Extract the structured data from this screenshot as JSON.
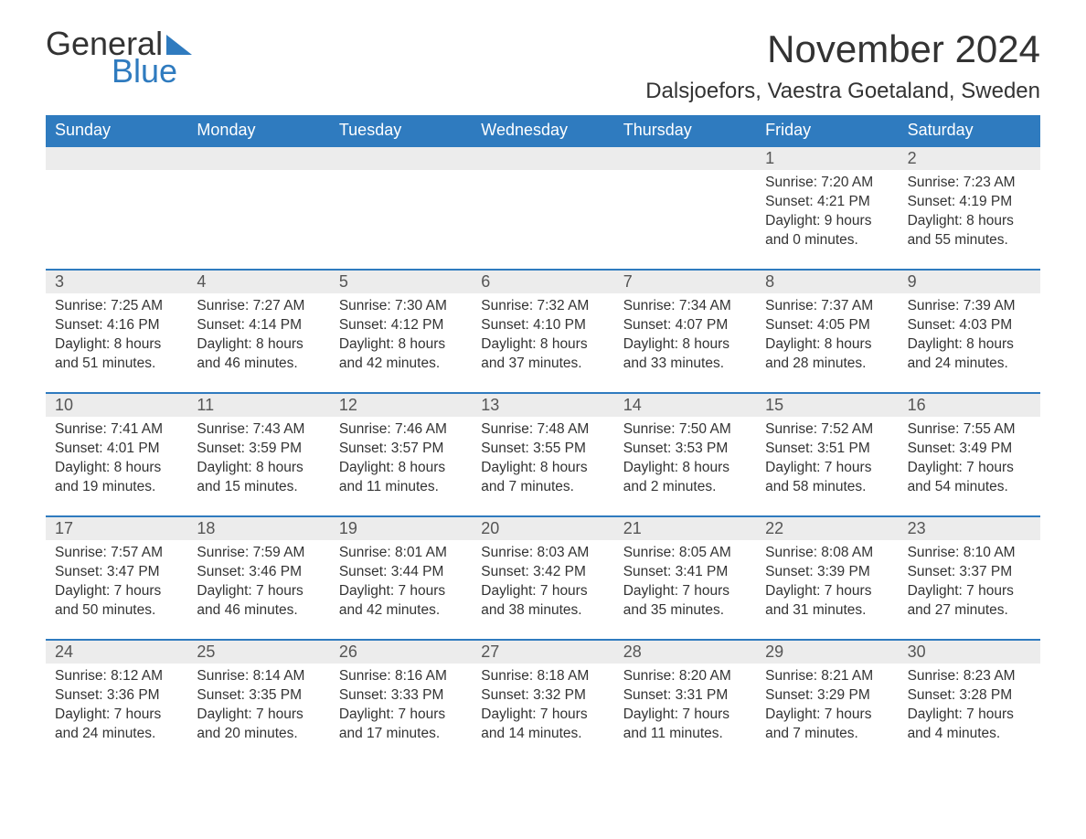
{
  "logo": {
    "word1": "General",
    "word2": "Blue",
    "word1_color": "#333333",
    "word2_color": "#2f7bbf",
    "triangle_color": "#2f7bbf"
  },
  "title": {
    "month": "November 2024",
    "location": "Dalsjoefors, Vaestra Goetaland, Sweden",
    "month_fontsize": 42,
    "location_fontsize": 24,
    "color": "#333333"
  },
  "calendar": {
    "header_bg": "#2f7bbf",
    "header_fg": "#ffffff",
    "daynum_bg": "#ececec",
    "border_color": "#2f7bbf",
    "text_color": "#333333",
    "columns": [
      "Sunday",
      "Monday",
      "Tuesday",
      "Wednesday",
      "Thursday",
      "Friday",
      "Saturday"
    ],
    "weeks": [
      [
        null,
        null,
        null,
        null,
        null,
        {
          "n": "1",
          "sunrise": "Sunrise: 7:20 AM",
          "sunset": "Sunset: 4:21 PM",
          "day1": "Daylight: 9 hours",
          "day2": "and 0 minutes."
        },
        {
          "n": "2",
          "sunrise": "Sunrise: 7:23 AM",
          "sunset": "Sunset: 4:19 PM",
          "day1": "Daylight: 8 hours",
          "day2": "and 55 minutes."
        }
      ],
      [
        {
          "n": "3",
          "sunrise": "Sunrise: 7:25 AM",
          "sunset": "Sunset: 4:16 PM",
          "day1": "Daylight: 8 hours",
          "day2": "and 51 minutes."
        },
        {
          "n": "4",
          "sunrise": "Sunrise: 7:27 AM",
          "sunset": "Sunset: 4:14 PM",
          "day1": "Daylight: 8 hours",
          "day2": "and 46 minutes."
        },
        {
          "n": "5",
          "sunrise": "Sunrise: 7:30 AM",
          "sunset": "Sunset: 4:12 PM",
          "day1": "Daylight: 8 hours",
          "day2": "and 42 minutes."
        },
        {
          "n": "6",
          "sunrise": "Sunrise: 7:32 AM",
          "sunset": "Sunset: 4:10 PM",
          "day1": "Daylight: 8 hours",
          "day2": "and 37 minutes."
        },
        {
          "n": "7",
          "sunrise": "Sunrise: 7:34 AM",
          "sunset": "Sunset: 4:07 PM",
          "day1": "Daylight: 8 hours",
          "day2": "and 33 minutes."
        },
        {
          "n": "8",
          "sunrise": "Sunrise: 7:37 AM",
          "sunset": "Sunset: 4:05 PM",
          "day1": "Daylight: 8 hours",
          "day2": "and 28 minutes."
        },
        {
          "n": "9",
          "sunrise": "Sunrise: 7:39 AM",
          "sunset": "Sunset: 4:03 PM",
          "day1": "Daylight: 8 hours",
          "day2": "and 24 minutes."
        }
      ],
      [
        {
          "n": "10",
          "sunrise": "Sunrise: 7:41 AM",
          "sunset": "Sunset: 4:01 PM",
          "day1": "Daylight: 8 hours",
          "day2": "and 19 minutes."
        },
        {
          "n": "11",
          "sunrise": "Sunrise: 7:43 AM",
          "sunset": "Sunset: 3:59 PM",
          "day1": "Daylight: 8 hours",
          "day2": "and 15 minutes."
        },
        {
          "n": "12",
          "sunrise": "Sunrise: 7:46 AM",
          "sunset": "Sunset: 3:57 PM",
          "day1": "Daylight: 8 hours",
          "day2": "and 11 minutes."
        },
        {
          "n": "13",
          "sunrise": "Sunrise: 7:48 AM",
          "sunset": "Sunset: 3:55 PM",
          "day1": "Daylight: 8 hours",
          "day2": "and 7 minutes."
        },
        {
          "n": "14",
          "sunrise": "Sunrise: 7:50 AM",
          "sunset": "Sunset: 3:53 PM",
          "day1": "Daylight: 8 hours",
          "day2": "and 2 minutes."
        },
        {
          "n": "15",
          "sunrise": "Sunrise: 7:52 AM",
          "sunset": "Sunset: 3:51 PM",
          "day1": "Daylight: 7 hours",
          "day2": "and 58 minutes."
        },
        {
          "n": "16",
          "sunrise": "Sunrise: 7:55 AM",
          "sunset": "Sunset: 3:49 PM",
          "day1": "Daylight: 7 hours",
          "day2": "and 54 minutes."
        }
      ],
      [
        {
          "n": "17",
          "sunrise": "Sunrise: 7:57 AM",
          "sunset": "Sunset: 3:47 PM",
          "day1": "Daylight: 7 hours",
          "day2": "and 50 minutes."
        },
        {
          "n": "18",
          "sunrise": "Sunrise: 7:59 AM",
          "sunset": "Sunset: 3:46 PM",
          "day1": "Daylight: 7 hours",
          "day2": "and 46 minutes."
        },
        {
          "n": "19",
          "sunrise": "Sunrise: 8:01 AM",
          "sunset": "Sunset: 3:44 PM",
          "day1": "Daylight: 7 hours",
          "day2": "and 42 minutes."
        },
        {
          "n": "20",
          "sunrise": "Sunrise: 8:03 AM",
          "sunset": "Sunset: 3:42 PM",
          "day1": "Daylight: 7 hours",
          "day2": "and 38 minutes."
        },
        {
          "n": "21",
          "sunrise": "Sunrise: 8:05 AM",
          "sunset": "Sunset: 3:41 PM",
          "day1": "Daylight: 7 hours",
          "day2": "and 35 minutes."
        },
        {
          "n": "22",
          "sunrise": "Sunrise: 8:08 AM",
          "sunset": "Sunset: 3:39 PM",
          "day1": "Daylight: 7 hours",
          "day2": "and 31 minutes."
        },
        {
          "n": "23",
          "sunrise": "Sunrise: 8:10 AM",
          "sunset": "Sunset: 3:37 PM",
          "day1": "Daylight: 7 hours",
          "day2": "and 27 minutes."
        }
      ],
      [
        {
          "n": "24",
          "sunrise": "Sunrise: 8:12 AM",
          "sunset": "Sunset: 3:36 PM",
          "day1": "Daylight: 7 hours",
          "day2": "and 24 minutes."
        },
        {
          "n": "25",
          "sunrise": "Sunrise: 8:14 AM",
          "sunset": "Sunset: 3:35 PM",
          "day1": "Daylight: 7 hours",
          "day2": "and 20 minutes."
        },
        {
          "n": "26",
          "sunrise": "Sunrise: 8:16 AM",
          "sunset": "Sunset: 3:33 PM",
          "day1": "Daylight: 7 hours",
          "day2": "and 17 minutes."
        },
        {
          "n": "27",
          "sunrise": "Sunrise: 8:18 AM",
          "sunset": "Sunset: 3:32 PM",
          "day1": "Daylight: 7 hours",
          "day2": "and 14 minutes."
        },
        {
          "n": "28",
          "sunrise": "Sunrise: 8:20 AM",
          "sunset": "Sunset: 3:31 PM",
          "day1": "Daylight: 7 hours",
          "day2": "and 11 minutes."
        },
        {
          "n": "29",
          "sunrise": "Sunrise: 8:21 AM",
          "sunset": "Sunset: 3:29 PM",
          "day1": "Daylight: 7 hours",
          "day2": "and 7 minutes."
        },
        {
          "n": "30",
          "sunrise": "Sunrise: 8:23 AM",
          "sunset": "Sunset: 3:28 PM",
          "day1": "Daylight: 7 hours",
          "day2": "and 4 minutes."
        }
      ]
    ]
  }
}
